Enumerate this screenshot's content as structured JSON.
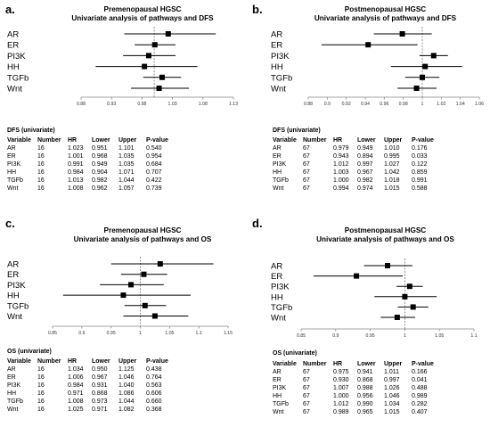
{
  "chart_data": [
    {
      "type": "forest",
      "letter": "a.",
      "title": "Premenopausal HGSC",
      "subtitle": "Univariate analysis of pathways and DFS",
      "categories": [
        "AR",
        "ER",
        "PI3K",
        "HH",
        "TGFb",
        "Wnt"
      ],
      "hr": [
        1.023,
        1.001,
        0.991,
        0.984,
        1.013,
        1.008
      ],
      "lower": [
        0.951,
        0.968,
        0.949,
        0.904,
        0.982,
        0.962
      ],
      "upper": [
        1.101,
        1.035,
        1.035,
        1.071,
        1.044,
        1.057
      ],
      "xlim": [
        0.88,
        1.13
      ],
      "ticks": [
        "0.88",
        "0.93",
        "0.98",
        "1.03",
        "1.08",
        "1.13"
      ],
      "ref_line": 1,
      "table_caption": "DFS (univariate)",
      "table_headers": [
        "Variable",
        "Number",
        "HR",
        "Lower",
        "Upper",
        "P-value"
      ],
      "table_rows": [
        [
          "AR",
          "16",
          "1.023",
          "0.951",
          "1.101",
          "0.540"
        ],
        [
          "ER",
          "16",
          "1.001",
          "0.968",
          "1.035",
          "0.954"
        ],
        [
          "PI3K",
          "16",
          "0.991",
          "0.949",
          "1.035",
          "0.684"
        ],
        [
          "HH",
          "16",
          "0.984",
          "0.904",
          "1.071",
          "0.707"
        ],
        [
          "TGFb",
          "16",
          "1.013",
          "0.982",
          "1.044",
          "0.422"
        ],
        [
          "Wnt",
          "16",
          "1.008",
          "0.962",
          "1.057",
          "0.739"
        ]
      ]
    },
    {
      "type": "forest",
      "letter": "b.",
      "title": "Postmenopausal HGSC",
      "subtitle": "Univariate analysis of pathways and DFS",
      "categories": [
        "AR",
        "ER",
        "PI3K",
        "HH",
        "TGFb",
        "Wnt"
      ],
      "hr": [
        0.979,
        0.943,
        1.012,
        1.003,
        1.0,
        0.994
      ],
      "lower": [
        0.949,
        0.894,
        0.997,
        0.967,
        0.982,
        0.974
      ],
      "upper": [
        1.01,
        0.995,
        1.027,
        1.042,
        1.018,
        1.015
      ],
      "xlim": [
        0.88,
        1.06
      ],
      "ticks": [
        "0.88",
        "0.9",
        "0.92",
        "0.94",
        "0.96",
        "0.98",
        "1",
        "1.02",
        "1.04",
        "1.06"
      ],
      "ref_line": 1,
      "table_caption": "DFS (univariate)",
      "table_headers": [
        "Variable",
        "Number",
        "HR",
        "Lower",
        "Upper",
        "P-value"
      ],
      "table_rows": [
        [
          "AR",
          "67",
          "0.979",
          "0.949",
          "1.010",
          "0.176"
        ],
        [
          "ER",
          "67",
          "0.943",
          "0.894",
          "0.995",
          "0.033"
        ],
        [
          "PI3K",
          "67",
          "1.012",
          "0.997",
          "1.027",
          "0.122"
        ],
        [
          "HH",
          "67",
          "1.003",
          "0.967",
          "1.042",
          "0.859"
        ],
        [
          "TGFb",
          "67",
          "1.000",
          "0.982",
          "1.018",
          "0.991"
        ],
        [
          "Wnt",
          "67",
          "0.994",
          "0.974",
          "1.015",
          "0.588"
        ]
      ]
    },
    {
      "type": "forest",
      "letter": "c.",
      "title": "Premenopausal HGSC",
      "subtitle": "Univariate analysis of pathways and OS",
      "categories": [
        "AR",
        "ER",
        "PI3K",
        "HH",
        "TGFb",
        "Wnt"
      ],
      "hr": [
        1.034,
        1.006,
        0.984,
        0.971,
        1.008,
        1.025
      ],
      "lower": [
        0.95,
        0.967,
        0.931,
        0.868,
        0.973,
        0.971
      ],
      "upper": [
        1.125,
        1.046,
        1.04,
        1.086,
        1.044,
        1.082
      ],
      "xlim": [
        0.85,
        1.15
      ],
      "ticks": [
        "0.85",
        "0.9",
        "0.95",
        "1",
        "1.05",
        "1.1",
        "1.15"
      ],
      "ref_line": 1,
      "table_caption": "OS (univariate)",
      "table_headers": [
        "Variable",
        "Number",
        "HR",
        "Lower",
        "Upper",
        "P-value"
      ],
      "table_rows": [
        [
          "AR",
          "16",
          "1.034",
          "0.950",
          "1.125",
          "0.438"
        ],
        [
          "ER",
          "16",
          "1.006",
          "0.967",
          "1.046",
          "0.764"
        ],
        [
          "PI3K",
          "16",
          "0.984",
          "0.931",
          "1.040",
          "0.563"
        ],
        [
          "HH",
          "16",
          "0.971",
          "0.868",
          "1.086",
          "0.606"
        ],
        [
          "TGFb",
          "16",
          "1.008",
          "0.973",
          "1.044",
          "0.660"
        ],
        [
          "Wnt",
          "16",
          "1.025",
          "0.971",
          "1.082",
          "0.368"
        ]
      ]
    },
    {
      "type": "forest",
      "letter": "d.",
      "title": "Postmenopausal HGSC",
      "subtitle": "Univariate analysis of pathways and OS",
      "categories": [
        "AR",
        "ER",
        "PI3K",
        "HH",
        "TGFb",
        "Wnt"
      ],
      "hr": [
        0.975,
        0.93,
        1.007,
        1.0,
        1.012,
        0.989
      ],
      "lower": [
        0.941,
        0.868,
        0.988,
        0.956,
        0.99,
        0.965
      ],
      "upper": [
        1.011,
        0.997,
        1.026,
        1.046,
        1.034,
        1.015
      ],
      "xlim": [
        0.85,
        1.1
      ],
      "ticks": [
        "0.85",
        "0.9",
        "0.95",
        "1",
        "1.05",
        "1.1"
      ],
      "ref_line": 1,
      "table_caption": "OS (univariate)",
      "table_headers": [
        "Variable",
        "Number",
        "HR",
        "Lower",
        "Upper",
        "P-value"
      ],
      "table_rows": [
        [
          "AR",
          "67",
          "0.975",
          "0.941",
          "1.011",
          "0.166"
        ],
        [
          "ER",
          "67",
          "0.930",
          "0.868",
          "0.997",
          "0.041"
        ],
        [
          "PI3K",
          "67",
          "1.007",
          "0.988",
          "1.026",
          "0.488"
        ],
        [
          "HH",
          "67",
          "1.000",
          "0.956",
          "1.046",
          "0.989"
        ],
        [
          "TGFb",
          "67",
          "1.012",
          "0.990",
          "1.034",
          "0.282"
        ],
        [
          "Wnt",
          "67",
          "0.989",
          "0.965",
          "1.015",
          "0.407"
        ]
      ]
    }
  ]
}
